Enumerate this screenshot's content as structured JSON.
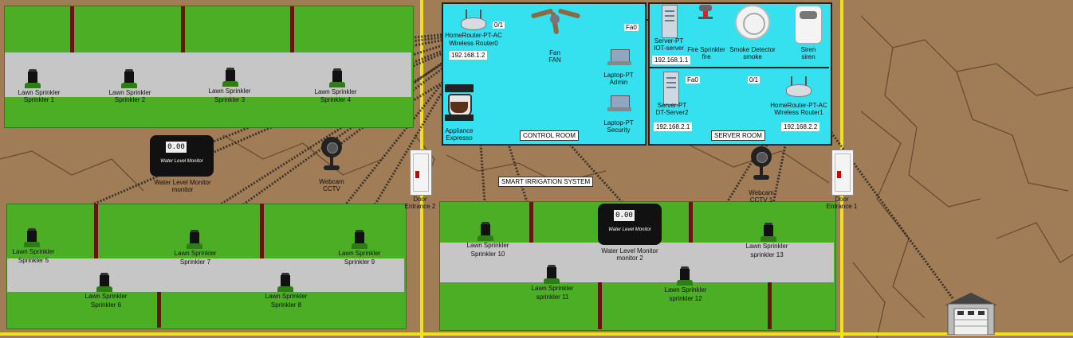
{
  "title": "SMART IRRIGATION SYSTEM",
  "colors": {
    "field": "#4cae25",
    "path": "#c6c6c6",
    "room": "#35e1ee",
    "cable": "#f1e21a",
    "post": "#6b1212",
    "soil": "#9c7a55"
  },
  "rooms": {
    "control": "CONTROL ROOM",
    "server": "SERVER ROOM"
  },
  "devices": {
    "router1": {
      "model": "HomeRouter-PT-AC",
      "name": "Wireless Router0",
      "ip": "192.168.1.2"
    },
    "router2": {
      "model": "HomeRouter-PT-AC",
      "name": "Wireless Router1",
      "ip": "192.168.2.2"
    },
    "fan": {
      "model": "Fan",
      "name": "FAN"
    },
    "laptop1": {
      "model": "Laptop-PT",
      "name": "Admin"
    },
    "laptop2": {
      "model": "Laptop-PT",
      "name": "Security"
    },
    "appliance": {
      "model": "Appliance",
      "name": "Expresso"
    },
    "server1": {
      "model": "Server-PT",
      "name": "IOT-server",
      "ip": "192.168.1.1"
    },
    "server2": {
      "model": "Server-PT",
      "name": "DT-Server2",
      "ip": "192.168.2.1"
    },
    "fire": {
      "model": "Fire Sprinkler",
      "name": "fire"
    },
    "smoke": {
      "model": "Smoke Detector",
      "name": "smoke"
    },
    "siren": {
      "model": "Siren",
      "name": "siren"
    },
    "monitor1": {
      "model": "Water Level Monitor",
      "name": "monitor",
      "reading": "0.00",
      "brand": "Water Level Monitor"
    },
    "monitor2": {
      "model": "Water Level Monitor",
      "name": "monitor 2",
      "reading": "0.00",
      "brand": "Water Level Monitor"
    },
    "webcam1": {
      "model": "Webcam",
      "name": "CCTV"
    },
    "webcam2": {
      "model": "Webcam",
      "name": "CCTV 1"
    },
    "door2": {
      "model": "Door",
      "name": "Entrance 2"
    },
    "door1": {
      "model": "Door",
      "name": "Entrance 1"
    }
  },
  "ports": {
    "p01a": "0/1",
    "fa0a": "Fa0",
    "fa0b": "Fa0",
    "p01b": "0/1"
  },
  "sprinklers": [
    {
      "model": "Lawn Sprinkler",
      "name": "Sprinkler 1"
    },
    {
      "model": "Lawn Sprinkler",
      "name": "Sprinkler 2"
    },
    {
      "model": "Lawn Sprinkler",
      "name": "Sprinkler 3"
    },
    {
      "model": "Lawn Sprinkler",
      "name": "Sprinkler 4"
    },
    {
      "model": "Lawn Sprinkler",
      "name": "Sprinkler 5"
    },
    {
      "model": "Lawn Sprinkler",
      "name": "Sprinkler 6"
    },
    {
      "model": "Lawn Sprinkler",
      "name": "Sprinkler 7"
    },
    {
      "model": "Lawn Sprinkler",
      "name": "Sprinkler 8"
    },
    {
      "model": "Lawn Sprinkler",
      "name": "Sprinkler 9"
    },
    {
      "model": "Lawn Sprinkler",
      "name": "Sprinkler 10"
    },
    {
      "model": "Lawn Sprinkler",
      "name": "sprinkler 11"
    },
    {
      "model": "Lawn Sprinkler",
      "name": "sprinkler 12"
    },
    {
      "model": "Lawn Sprinkler",
      "name": "sprinkler 13"
    }
  ]
}
